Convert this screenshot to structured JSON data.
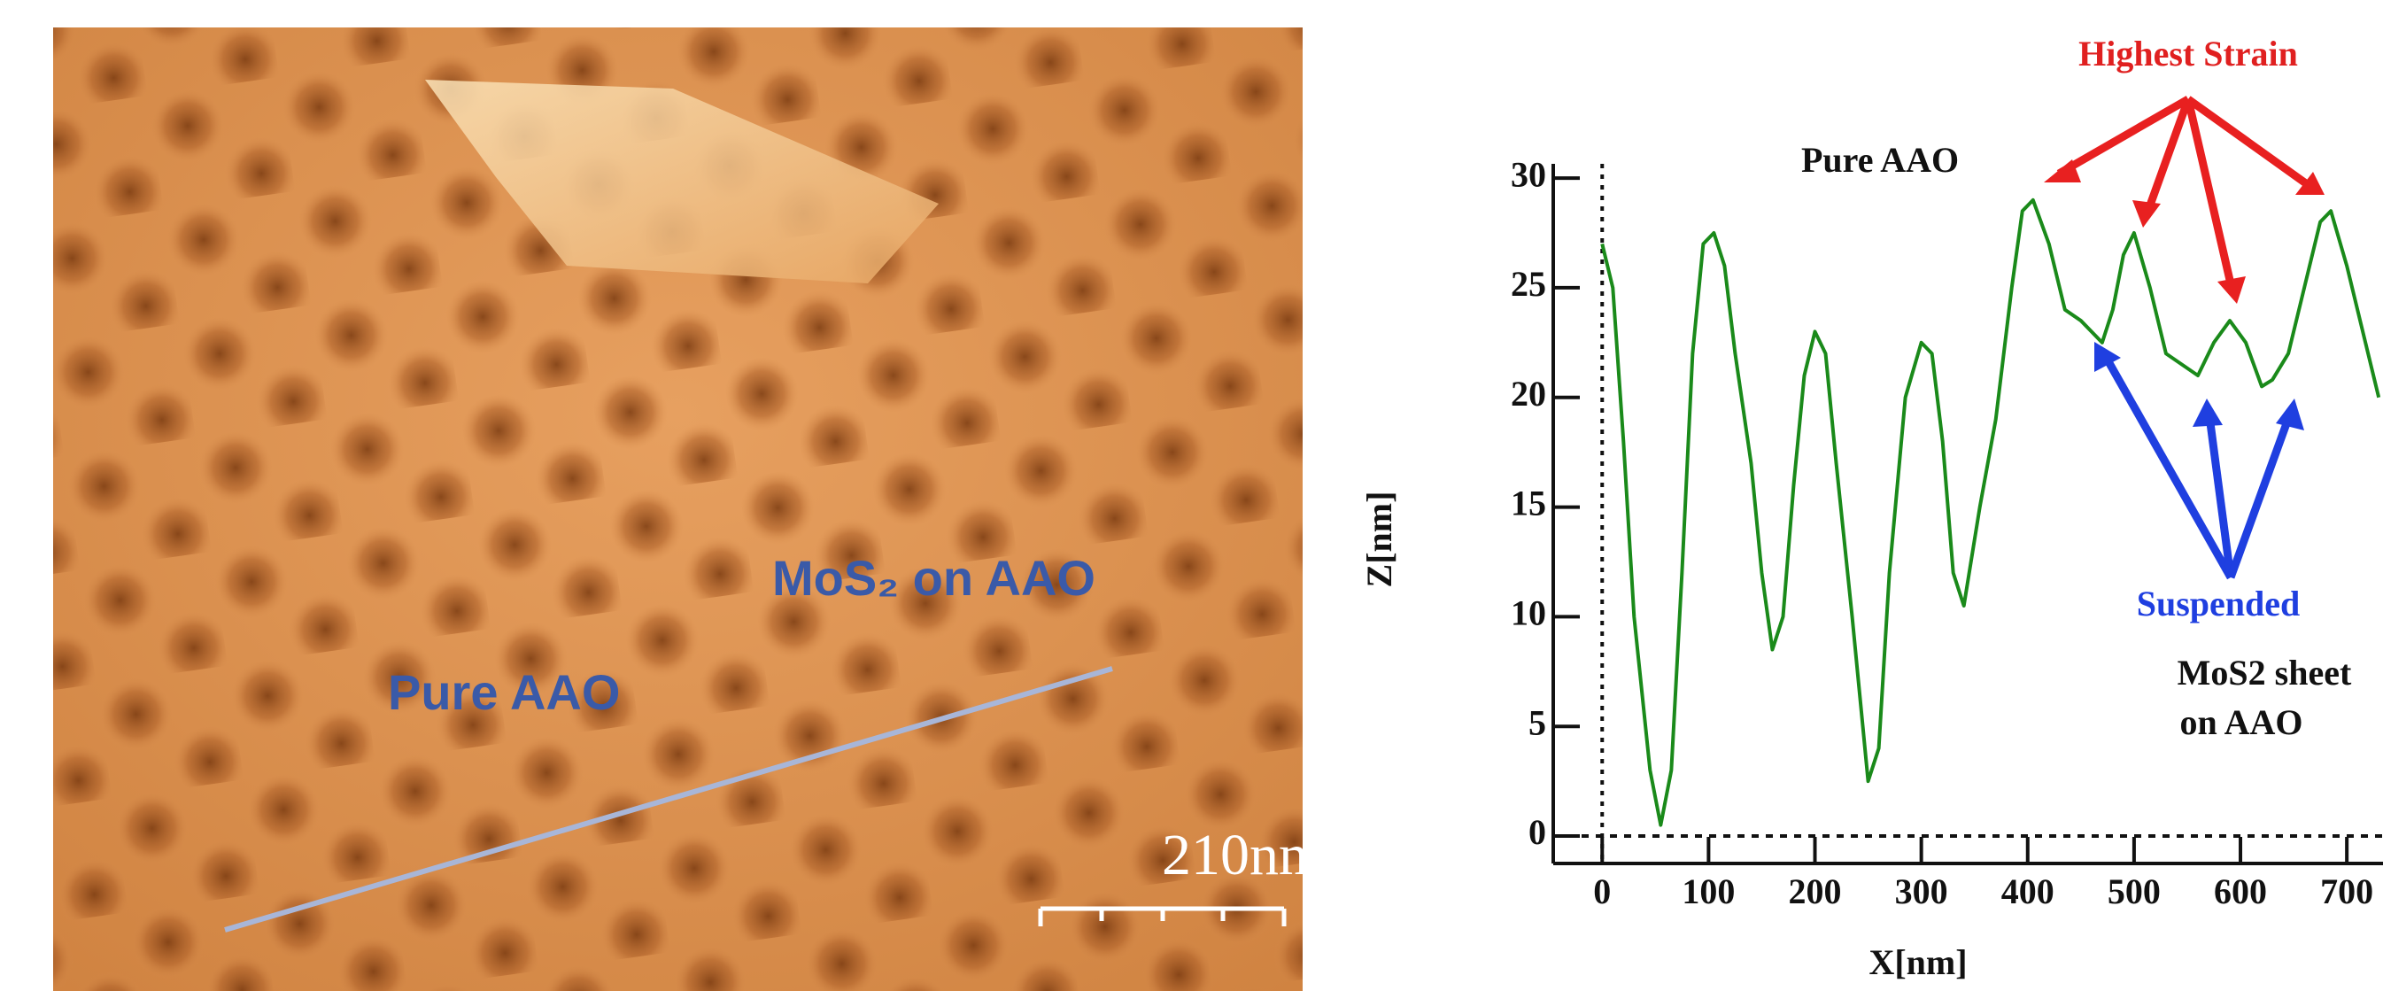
{
  "afm_image": {
    "labels": [
      "Pure AAO",
      "MoS₂ on AAO"
    ],
    "scale_bar": "210nm"
  },
  "chart_data": {
    "type": "line",
    "x_label": "X[nm]",
    "y_label": "Z[nm]",
    "annotations": [
      "Pure AAO",
      "Highest Strain",
      "Suspended",
      "MoS2 sheet",
      "on AAO"
    ],
    "x": [
      0,
      10,
      20,
      30,
      45,
      55,
      65,
      75,
      85,
      95,
      105,
      115,
      125,
      140,
      150,
      160,
      170,
      180,
      190,
      200,
      210,
      220,
      235,
      250,
      260,
      270,
      285,
      300,
      310,
      320,
      330,
      340,
      355,
      370,
      385,
      395,
      405,
      420,
      435,
      450,
      470,
      480,
      490,
      500,
      515,
      530,
      545,
      560,
      575,
      590,
      605,
      620,
      630,
      645,
      660,
      675,
      685,
      700,
      720,
      730
    ],
    "values": [
      27,
      25,
      18,
      10,
      3,
      0.5,
      3,
      12,
      22,
      27,
      27.5,
      26,
      22,
      17,
      12,
      8.5,
      10,
      16,
      21,
      23,
      22,
      17,
      10,
      2.5,
      4,
      12,
      20,
      22.5,
      22,
      18,
      12,
      10.5,
      15,
      19,
      25,
      28.5,
      29,
      27,
      24,
      23.5,
      22.5,
      24,
      26.5,
      27.5,
      25,
      22,
      21.5,
      21,
      22.5,
      23.5,
      22.5,
      20.5,
      20.8,
      22,
      25,
      28,
      28.5,
      26,
      22,
      20
    ],
    "color": "#1a8a1a",
    "xlim": [
      -46,
      734
    ],
    "ylim": [
      -1.25,
      30.65
    ],
    "xticks": [
      0,
      100,
      200,
      300,
      400,
      500,
      600,
      700
    ],
    "yticks": [
      0,
      5,
      10,
      15,
      20,
      25,
      30
    ]
  }
}
